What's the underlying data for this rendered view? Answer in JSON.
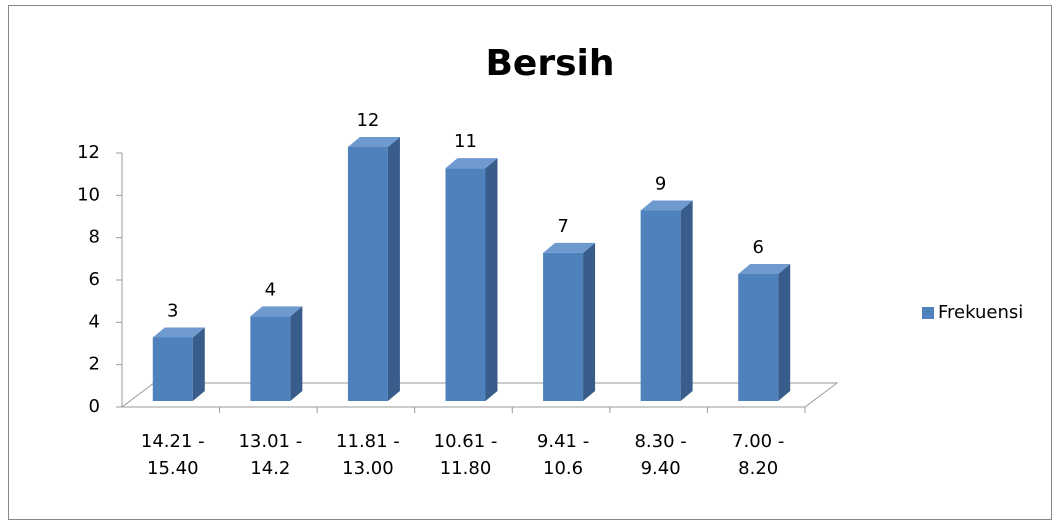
{
  "chart_data": {
    "type": "bar",
    "title": "Bersih",
    "categories": [
      "14.21 - 15.40",
      "13.01 - 14.2",
      "11.81 - 13.00",
      "10.61 - 11.80",
      "9.41 - 10.6",
      "8.30 - 9.40",
      "7.00 - 8.20"
    ],
    "series": [
      {
        "name": "Frekuensi",
        "color": "#4f81bd",
        "values": [
          3,
          4,
          12,
          11,
          7,
          9,
          6
        ]
      }
    ],
    "ylim": [
      0,
      12
    ],
    "yticks": [
      0,
      2,
      4,
      6,
      8,
      10,
      12
    ],
    "legend": "right"
  }
}
